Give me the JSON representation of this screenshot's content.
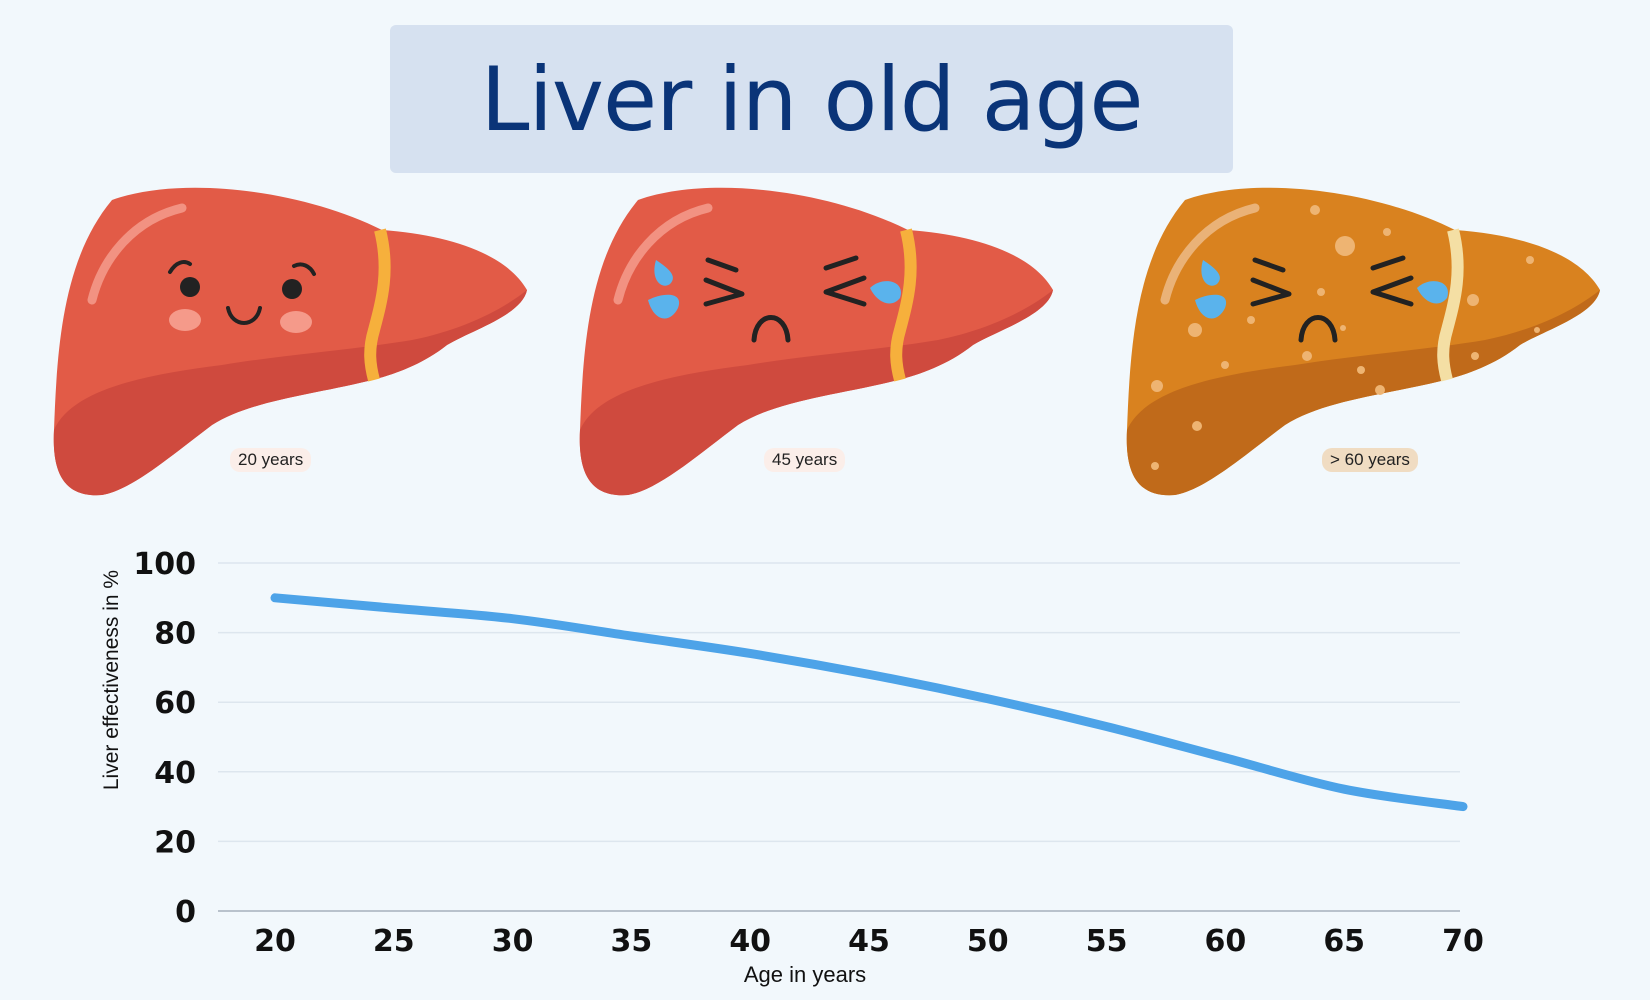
{
  "title": "Liver in old age",
  "livers": [
    {
      "label": "20 years",
      "face": "happy-face",
      "color": "#e25b47",
      "shade": "#cf4a3e"
    },
    {
      "label": "45 years",
      "face": "crying-face",
      "color": "#e25b47",
      "shade": "#cf4a3e"
    },
    {
      "label": "> 60 years",
      "face": "crying-face",
      "color": "#d9821f",
      "shade": "#c06a1a"
    }
  ],
  "chart_data": {
    "type": "line",
    "x": [
      20,
      25,
      30,
      35,
      40,
      45,
      50,
      55,
      60,
      65,
      70
    ],
    "series": [
      {
        "values": [
          90,
          87,
          84,
          79,
          74,
          68,
          61,
          53,
          44,
          35,
          30
        ],
        "color": "#4da3e8"
      }
    ],
    "xlabel": "Age in years",
    "ylabel": "Liver effectiveness in %",
    "xticks": [
      20,
      25,
      30,
      35,
      40,
      45,
      50,
      55,
      60,
      65,
      70
    ],
    "yticks": [
      0,
      20,
      40,
      60,
      80,
      100
    ],
    "xlim": [
      20,
      70
    ],
    "ylim": [
      0,
      100
    ],
    "grid": true
  }
}
